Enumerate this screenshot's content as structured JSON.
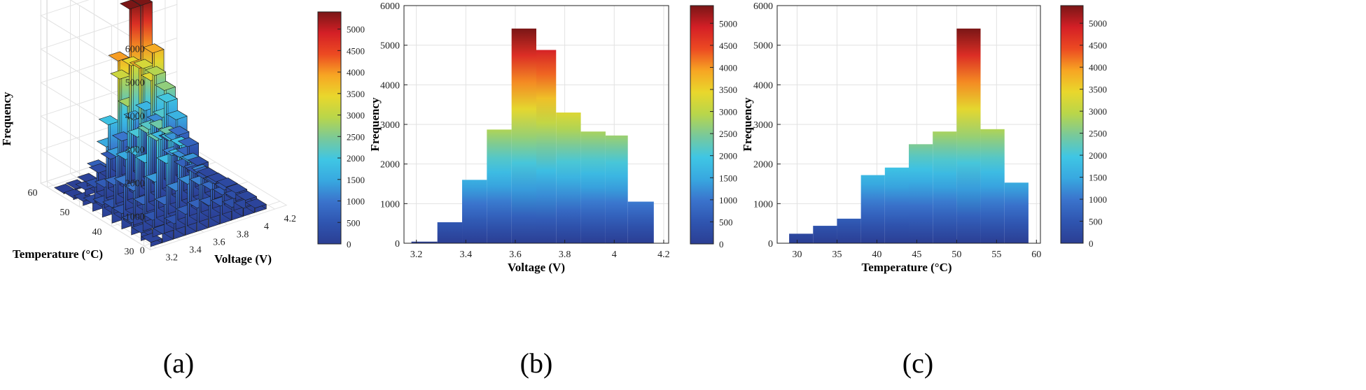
{
  "colors": {
    "colormap": [
      "#2b3e93",
      "#2f55b0",
      "#3a73cc",
      "#38a8e0",
      "#3fc6e4",
      "#79c99a",
      "#b9d64a",
      "#e9d72c",
      "#f7a523",
      "#ec4a22",
      "#d41f26",
      "#7a1616"
    ],
    "grid": "#e2e2e2",
    "axis": "#222222",
    "bar_edge": "#1b1b1b"
  },
  "chart_data": [
    {
      "panel_label": "(a)",
      "type": "bar3d",
      "zlabel": "Frequency",
      "xlabel": "Voltage (V)",
      "ylabel": "Temperature (°C)",
      "z_ticks": [
        "0",
        "1000",
        "2000",
        "3000",
        "4000",
        "5000",
        "6000"
      ],
      "x_ticks": [
        "3.2",
        "3.4",
        "3.6",
        "3.8",
        "4",
        "4.2"
      ],
      "y_ticks": [
        "30",
        "40",
        "50",
        "60"
      ],
      "zlim": [
        0,
        6000
      ],
      "peak_value": 5400,
      "colorbar": {
        "min": 0,
        "max": 5400,
        "ticks": [
          "0",
          "500",
          "1000",
          "1500",
          "2000",
          "2500",
          "3000",
          "3500",
          "4000",
          "4500",
          "5000"
        ]
      }
    },
    {
      "panel_label": "(b)",
      "type": "bar",
      "xlabel": "Voltage (V)",
      "ylabel": "Frequency",
      "xlim": [
        3.15,
        4.22
      ],
      "ylim": [
        0,
        6000
      ],
      "x_ticks": [
        "3.2",
        "3.4",
        "3.6",
        "3.8",
        "4",
        "4.2"
      ],
      "y_ticks": [
        "0",
        "1000",
        "2000",
        "3000",
        "4000",
        "5000",
        "6000"
      ],
      "bins": [
        {
          "start": 3.18,
          "end": 3.285,
          "value": 40
        },
        {
          "start": 3.285,
          "end": 3.385,
          "value": 530
        },
        {
          "start": 3.385,
          "end": 3.485,
          "value": 1600
        },
        {
          "start": 3.485,
          "end": 3.585,
          "value": 2870
        },
        {
          "start": 3.585,
          "end": 3.685,
          "value": 5420
        },
        {
          "start": 3.685,
          "end": 3.765,
          "value": 4880
        },
        {
          "start": 3.765,
          "end": 3.865,
          "value": 3300
        },
        {
          "start": 3.865,
          "end": 3.965,
          "value": 2820
        },
        {
          "start": 3.965,
          "end": 4.055,
          "value": 2720
        },
        {
          "start": 4.055,
          "end": 4.16,
          "value": 1050
        }
      ],
      "colorbar": {
        "min": 0,
        "max": 5400,
        "ticks": [
          "0",
          "500",
          "1000",
          "1500",
          "2000",
          "2500",
          "3000",
          "3500",
          "4000",
          "4500",
          "5000"
        ]
      }
    },
    {
      "panel_label": "(c)",
      "type": "bar",
      "xlabel": "Temperature (°C)",
      "ylabel": "Frequency",
      "xlim": [
        27.5,
        60.5
      ],
      "ylim": [
        0,
        6000
      ],
      "x_ticks": [
        "30",
        "35",
        "40",
        "45",
        "50",
        "55",
        "60"
      ],
      "y_ticks": [
        "0",
        "1000",
        "2000",
        "3000",
        "4000",
        "5000",
        "6000"
      ],
      "bins": [
        {
          "start": 29,
          "end": 32,
          "value": 240
        },
        {
          "start": 32,
          "end": 35,
          "value": 440
        },
        {
          "start": 35,
          "end": 38,
          "value": 620
        },
        {
          "start": 38,
          "end": 41,
          "value": 1720
        },
        {
          "start": 41,
          "end": 44,
          "value": 1910
        },
        {
          "start": 44,
          "end": 47,
          "value": 2500
        },
        {
          "start": 47,
          "end": 50,
          "value": 2820
        },
        {
          "start": 50,
          "end": 53,
          "value": 5420
        },
        {
          "start": 53,
          "end": 56,
          "value": 2880
        },
        {
          "start": 56,
          "end": 59,
          "value": 1530
        }
      ],
      "colorbar": {
        "min": 0,
        "max": 5400,
        "ticks": [
          "0",
          "500",
          "1000",
          "1500",
          "2000",
          "2500",
          "3000",
          "3500",
          "4000",
          "4500",
          "5000"
        ]
      }
    }
  ]
}
